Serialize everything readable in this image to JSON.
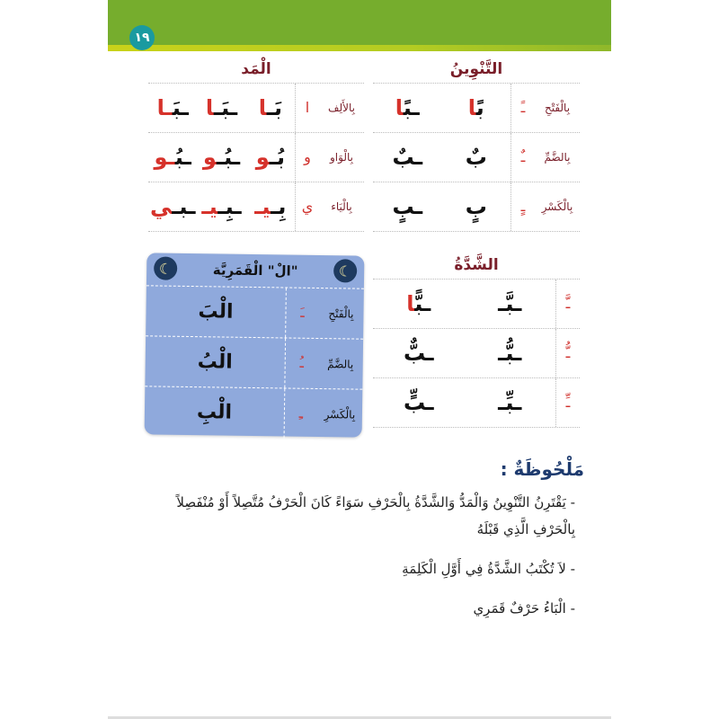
{
  "page_number": "١٩",
  "colors": {
    "header_green": "#76ad2d",
    "accent_red": "#d6322b",
    "heading_red": "#7a1f2a",
    "box_blue": "#8fa9dc",
    "notes_blue": "#1d3a6e"
  },
  "tanween": {
    "title": "التَّنْوِينُ",
    "rows": [
      {
        "label": "بِالْفَتْحِ",
        "symbol": "ـً",
        "cells": [
          {
            "b": "ب",
            "r": "ًا"
          },
          {
            "b": "ـب",
            "r": "ًا"
          }
        ]
      },
      {
        "label": "بِالضَّمِّ",
        "symbol": "ـٌ",
        "cells": [
          {
            "b": "بٌ",
            "r": ""
          },
          {
            "b": "ـبٌ",
            "r": ""
          }
        ]
      },
      {
        "label": "بِالْكَسْرِ",
        "symbol": "ـٍ",
        "cells": [
          {
            "b": "بٍ",
            "r": ""
          },
          {
            "b": "ـبٍ",
            "r": ""
          }
        ]
      }
    ]
  },
  "madd": {
    "title": "الْمَد",
    "rows": [
      {
        "label": "بِالأَلِف",
        "symbol": "ا",
        "cells": [
          {
            "b": "بَـ",
            "r": "ا"
          },
          {
            "b": "ـبَـ",
            "r": "ا"
          },
          {
            "b": "ـبَ",
            "r": "ـا"
          }
        ]
      },
      {
        "label": "بِالْوَاو",
        "symbol": "و",
        "cells": [
          {
            "b": "بُـ",
            "r": "و"
          },
          {
            "b": "ـبُـ",
            "r": "و"
          },
          {
            "b": "ـبُ",
            "r": "ـو"
          }
        ]
      },
      {
        "label": "بِالْيَاء",
        "symbol": "ي",
        "cells": [
          {
            "b": "بِـ",
            "r": "يـ"
          },
          {
            "b": "ـبِـ",
            "r": "يـ"
          },
          {
            "b": "ـبـ",
            "r": "ي"
          }
        ]
      }
    ]
  },
  "shadda": {
    "title": "الشَّدَّةُ",
    "rows": [
      {
        "symbol": "ـَّ",
        "cells": [
          {
            "b": "ـبَّـ",
            "r": ""
          },
          {
            "b": "ـب",
            "r": "ًّا"
          }
        ]
      },
      {
        "symbol": "ـُّ",
        "cells": [
          {
            "b": "ـبُّـ",
            "r": ""
          },
          {
            "b": "ـبٌّ",
            "r": ""
          }
        ]
      },
      {
        "symbol": "ـِّ",
        "cells": [
          {
            "b": "ـبِّـ",
            "r": ""
          },
          {
            "b": "ـبٍّ",
            "r": ""
          }
        ]
      }
    ]
  },
  "qamariya": {
    "title": "\"الْ\" الْقَمَرِيَّة",
    "icon": "crescent-moon-icon",
    "rows": [
      {
        "label": "بِالْفَتْحِ",
        "symbol": "ـَ",
        "word": "الْبَ"
      },
      {
        "label": "بِالضَّمِّ",
        "symbol": "ـُ",
        "word": "الْبُ"
      },
      {
        "label": "بِالْكَسْرِ",
        "symbol": "ـِ",
        "word": "الْبِ"
      }
    ]
  },
  "notes": {
    "title": "مَلْحُوظَةٌ :",
    "items": [
      "- يَقْتَرِنُ التَّنْوِينُ وَالْمَدُّ وَالشَّدَّةُ بِالْحَرْفِ سَوَاءً كَانَ الْحَرْفُ مُتَّصِلاً أَوْ مُنْفَصِلاً بِالْحَرْفِ الَّذِي قَبْلَهُ",
      "- لاَ تُكْتَبُ الشَّدَّةُ فِي أَوَّلِ الْكَلِمَةِ",
      "- الْبَاءُ حَرْفٌ قَمَرِي"
    ]
  }
}
